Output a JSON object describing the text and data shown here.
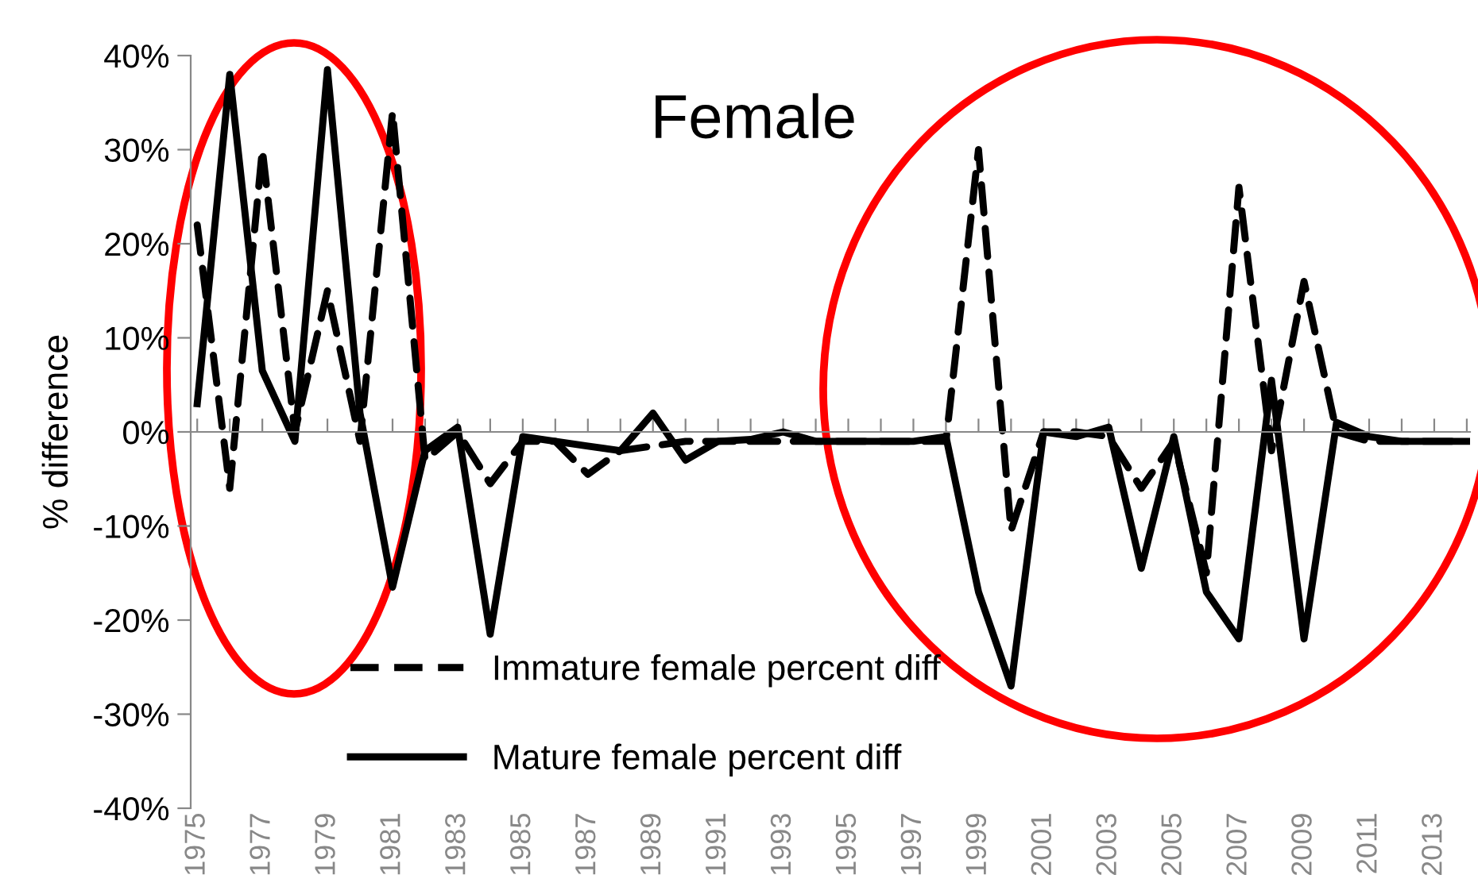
{
  "chart_data": {
    "type": "line",
    "title": "Female",
    "ylabel": "% difference",
    "categories": [
      "1975",
      null,
      "1977",
      null,
      "1979",
      null,
      "1981",
      null,
      "1983",
      null,
      "1985",
      null,
      "1987",
      null,
      "1989",
      null,
      "1991",
      null,
      "1993",
      null,
      "1995",
      null,
      "1997",
      null,
      "1999",
      null,
      "2001",
      null,
      "2003",
      null,
      "2005",
      null,
      "2007",
      null,
      "2009",
      null,
      "2011",
      null,
      "2013",
      null
    ],
    "series": [
      {
        "name": "Immature female percent diff",
        "color": "#000000",
        "line_style": "dashed",
        "values": [
          22,
          -6,
          30,
          0,
          15,
          -1,
          34,
          -3,
          0,
          -5.5,
          -1,
          -1,
          -4.5,
          -2,
          -1.5,
          -1,
          -1,
          -1,
          -1,
          -1,
          -1,
          -1,
          -1,
          -1,
          30,
          -10.5,
          0,
          0,
          -0.5,
          -6,
          -1,
          -15,
          26,
          -2,
          16,
          0,
          -1,
          -1,
          -1,
          -1
        ]
      },
      {
        "name": "Mature female percent diff",
        "color": "#000000",
        "line_style": "solid",
        "values": [
          3,
          38,
          6.5,
          -1,
          38.5,
          2,
          -16.5,
          -2,
          0.5,
          -21.5,
          -0.5,
          -1,
          -1.5,
          -2,
          2,
          -3,
          -1,
          -0.8,
          0,
          -1,
          -1,
          -1,
          -1,
          -0.5,
          -17,
          -27,
          0,
          -0.5,
          0.5,
          -14.5,
          -0.5,
          -17,
          -22,
          5.5,
          -22,
          1,
          -0.5,
          -1,
          -1,
          -1
        ]
      }
    ],
    "ylim": [
      -40,
      40
    ],
    "yticks": [
      {
        "value": -40,
        "label": "-40%"
      },
      {
        "value": -30,
        "label": "-30%"
      },
      {
        "value": -20,
        "label": "-20%"
      },
      {
        "value": -10,
        "label": "-10%"
      },
      {
        "value": 0,
        "label": "0%"
      },
      {
        "value": 10,
        "label": "10%"
      },
      {
        "value": 20,
        "label": "20%"
      },
      {
        "value": 30,
        "label": "30%"
      },
      {
        "value": 40,
        "label": "40%"
      }
    ],
    "legend": "bottom left",
    "marker": "none"
  }
}
